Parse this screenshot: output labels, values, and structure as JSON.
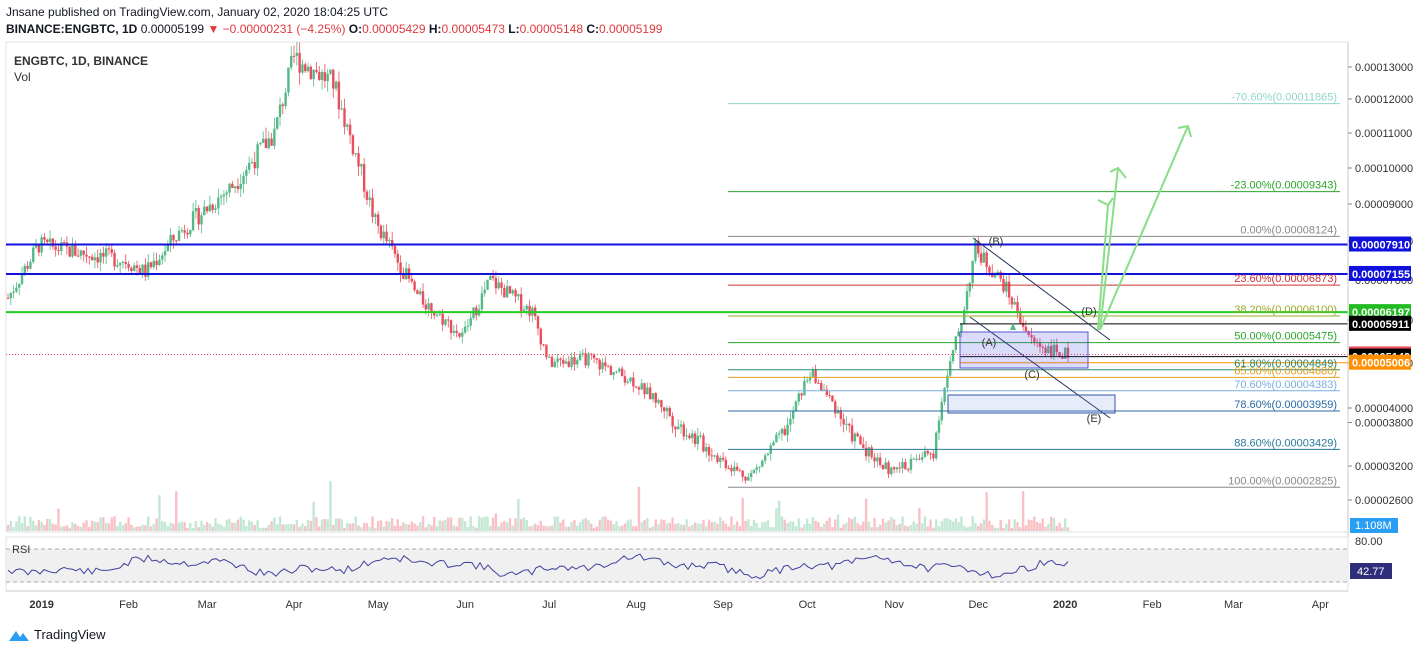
{
  "header": {
    "publisher_line": "Jnsane published on TradingView.com, January 02, 2020 18:04:25 UTC",
    "symbol": "BINANCE:ENGBTC, 1D",
    "last": "0.00005199",
    "arrow": "▼",
    "change": "−0.00000231 (−4.25%)",
    "o_label": "O:",
    "o": "0.00005429",
    "h_label": "H:",
    "h": "0.00005473",
    "l_label": "L:",
    "l": "0.00005148",
    "c_label": "C:",
    "c": "0.00005199"
  },
  "legend": {
    "title": "ENGBTC, 1D, BINANCE",
    "vol": "Vol"
  },
  "rsi": {
    "label": "RSI",
    "value": "42.77",
    "upper": "80.00"
  },
  "volume_badge": "1.108M",
  "footer": {
    "brand": "TradingView"
  },
  "colors": {
    "up": "#53b987",
    "down": "#eb4d5c",
    "blue_line": "#1111dd",
    "green_line": "#22cc22",
    "axis_bg_blue": "#1111dd",
    "axis_bg_green": "#22bb22",
    "orange": "#ff8f00",
    "black": "#000000"
  },
  "chart_data": {
    "type": "candlestick",
    "title": "ENGBTC, 1D, BINANCE",
    "x_axis_ticks": [
      "2019",
      "Feb",
      "Mar",
      "Apr",
      "May",
      "Jun",
      "Jul",
      "Aug",
      "Sep",
      "Oct",
      "Nov",
      "Dec",
      "2020",
      "Feb",
      "Mar",
      "Apr"
    ],
    "y_axis_ticks": [
      "0.00013000",
      "0.00012000",
      "0.00011000",
      "0.00010000",
      "0.00009000",
      "0.00008000",
      "0.00007000",
      "0.00006000",
      "0.00005000",
      "0.00004000",
      "0.00003800",
      "0.00003200",
      "0.00002600"
    ],
    "y_axis_ticks_values": [
      0.00013,
      0.00012,
      0.00011,
      0.0001,
      9e-05,
      8e-05,
      7e-05,
      6e-05,
      5e-05,
      4e-05,
      3.8e-05,
      3.2e-05,
      2.6e-05
    ],
    "price_path": [
      [
        "2018-12-20",
        6.55e-05
      ],
      [
        "2018-12-31",
        7.9e-05
      ],
      [
        "2019-01-15",
        7.7e-05
      ],
      [
        "2019-01-31",
        7.5e-05
      ],
      [
        "2019-02-07",
        7.2e-05
      ],
      [
        "2019-02-20",
        8.3e-05
      ],
      [
        "2019-03-10",
        9.5e-05
      ],
      [
        "2019-03-25",
        0.00011
      ],
      [
        "2019-04-01",
        0.000133
      ],
      [
        "2019-04-15",
        0.000125
      ],
      [
        "2019-04-30",
        8.5e-05
      ],
      [
        "2019-05-15",
        6.6e-05
      ],
      [
        "2019-05-31",
        5.6e-05
      ],
      [
        "2019-06-10",
        7e-05
      ],
      [
        "2019-06-25",
        6.2e-05
      ],
      [
        "2019-07-01",
        5e-05
      ],
      [
        "2019-07-15",
        5.1e-05
      ],
      [
        "2019-07-31",
        4.6e-05
      ],
      [
        "2019-08-15",
        3.8e-05
      ],
      [
        "2019-08-31",
        3.3e-05
      ],
      [
        "2019-09-10",
        3e-05
      ],
      [
        "2019-09-25",
        3.8e-05
      ],
      [
        "2019-10-02",
        4.8e-05
      ],
      [
        "2019-10-15",
        3.7e-05
      ],
      [
        "2019-10-31",
        3.1e-05
      ],
      [
        "2019-11-15",
        3.4e-05
      ],
      [
        "2019-11-25",
        6e-05
      ],
      [
        "2019-11-30",
        7.8e-05
      ],
      [
        "2019-12-10",
        6.9e-05
      ],
      [
        "2019-12-20",
        5.5e-05
      ],
      [
        "2019-12-31",
        5.2e-05
      ],
      [
        "2020-01-02",
        5.2e-05
      ]
    ],
    "price_path_note": "",
    "horizontal_lines": [
      {
        "label": "0.00007910",
        "value": 7.91e-05,
        "color": "#1111dd"
      },
      {
        "label": "0.00007155",
        "value": 7.155e-05,
        "color": "#1111dd"
      },
      {
        "label": "0.00006197",
        "value": 6.197e-05,
        "color": "#22cc22"
      },
      {
        "label": "0.00005911",
        "value": 5.911e-05,
        "color": "#000000"
      },
      {
        "label": "0.00005199",
        "value": 5.199e-05,
        "color": "#eb4d5c"
      },
      {
        "label": "0.00005149",
        "value": 5.149e-05,
        "color": "#000000"
      },
      {
        "label": "0.00005006",
        "value": 5.006e-05,
        "color": "#ff8f00"
      }
    ],
    "fib_levels": [
      {
        "label": "-70.60%(0.00011865)",
        "value": 0.00011865,
        "color": "#8fd6c9"
      },
      {
        "label": "-23.00%(0.00009343)",
        "value": 9.343e-05,
        "color": "#2aa52a"
      },
      {
        "label": "0.00%(0.00008124)",
        "value": 8.124e-05,
        "color": "#888888"
      },
      {
        "label": "23.60%(0.00006873)",
        "value": 6.873e-05,
        "color": "#cc3333"
      },
      {
        "label": "38.20%(0.00006100)",
        "value": 6.1e-05,
        "color": "#99aa22"
      },
      {
        "label": "50.00%(0.00005475)",
        "value": 5.475e-05,
        "color": "#2aa52a"
      },
      {
        "label": "61.80%(0.00004849)",
        "value": 4.849e-05,
        "color": "#2a8a6a"
      },
      {
        "label": "65.00%(0.00004680)",
        "value": 4.68e-05,
        "color": "#e8a020"
      },
      {
        "label": "70.60%(0.00004383)",
        "value": 4.383e-05,
        "color": "#7aaee0"
      },
      {
        "label": "78.60%(0.00003959)",
        "value": 3.959e-05,
        "color": "#2a6aa5"
      },
      {
        "label": "88.60%(0.00003429)",
        "value": 3.429e-05,
        "color": "#2a7a9a"
      },
      {
        "label": "100.00%(0.00002825)",
        "value": 2.825e-05,
        "color": "#888888"
      }
    ],
    "wave_labels": [
      "(B)",
      "(A)",
      "(C)",
      "(D)",
      "(E)"
    ]
  }
}
